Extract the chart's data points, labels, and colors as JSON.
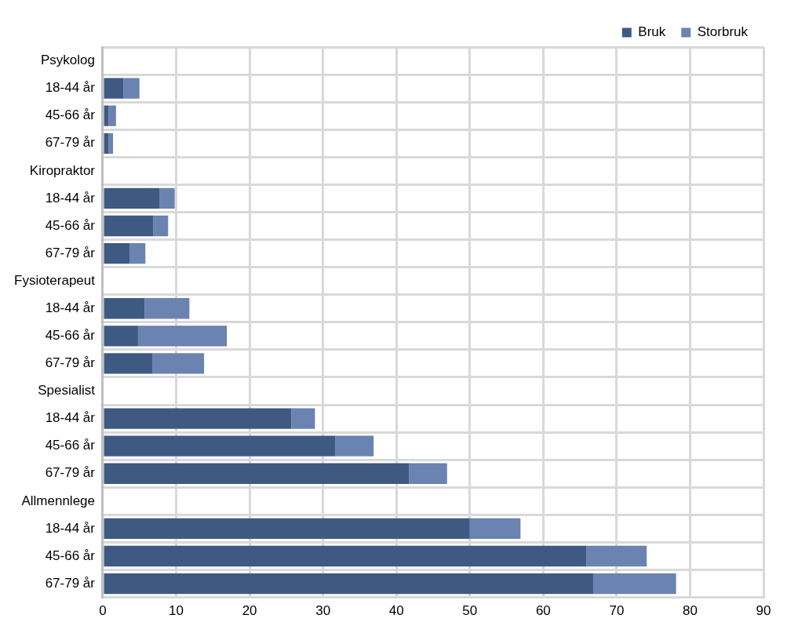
{
  "chart_data": {
    "type": "bar",
    "orientation": "horizontal",
    "stacked": true,
    "categories": [
      "Psykolog",
      "18-44 år",
      "45-66 år",
      "67-79 år",
      "Kiropraktor",
      "18-44 år",
      "45-66 år",
      "67-79 år",
      "Fysioterapeut",
      "18-44 år",
      "45-66 år",
      "67-79 år",
      "Spesialist",
      "18-44 år",
      "45-66 år",
      "67-79 år",
      "Allmennlege",
      "18-44 år",
      "45-66 år",
      "67-79 år"
    ],
    "series": [
      {
        "name": "Bruk",
        "color": "#3f5a82",
        "values": [
          null,
          2.8,
          0.8,
          0.8,
          null,
          7.7,
          6.9,
          3.7,
          null,
          5.7,
          4.8,
          6.8,
          null,
          25.7,
          31.7,
          41.7,
          null,
          50,
          65.9,
          66.8
        ]
      },
      {
        "name": "Storbruk",
        "color": "#6a83b0",
        "values": [
          null,
          2.2,
          1.0,
          0.6,
          null,
          2.1,
          2.0,
          2.1,
          null,
          6.1,
          12.1,
          7.0,
          null,
          3.2,
          5.2,
          5.2,
          null,
          6.9,
          8.2,
          11.3
        ]
      }
    ],
    "xlim": [
      0,
      90
    ],
    "xticks": [
      0,
      10,
      20,
      30,
      40,
      50,
      60,
      70,
      80,
      90
    ],
    "grid": true,
    "legend": "top right"
  }
}
